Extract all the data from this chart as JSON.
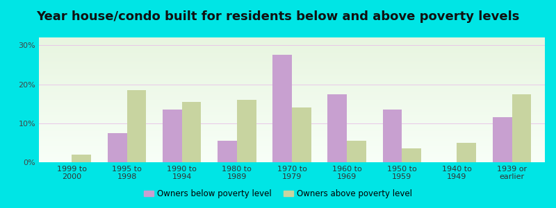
{
  "title": "Year house/condo built for residents below and above poverty levels",
  "categories": [
    "1999 to\n2000",
    "1995 to\n1998",
    "1990 to\n1994",
    "1980 to\n1989",
    "1970 to\n1979",
    "1960 to\n1969",
    "1950 to\n1959",
    "1940 to\n1949",
    "1939 or\nearlier"
  ],
  "below_poverty": [
    0.0,
    7.5,
    13.5,
    5.5,
    27.5,
    17.5,
    13.5,
    0.0,
    11.5
  ],
  "above_poverty": [
    2.0,
    18.5,
    15.5,
    16.0,
    14.0,
    5.5,
    3.5,
    5.0,
    17.5
  ],
  "bar_color_below": "#c8a0d0",
  "bar_color_above": "#c8d4a0",
  "yticks": [
    0,
    10,
    20,
    30
  ],
  "ylim": [
    0,
    32
  ],
  "outer_color": "#00e5e5",
  "legend_below": "Owners below poverty level",
  "legend_above": "Owners above poverty level",
  "title_fontsize": 13,
  "tick_fontsize": 8.0,
  "legend_fontsize": 8.5,
  "bar_width": 0.35
}
